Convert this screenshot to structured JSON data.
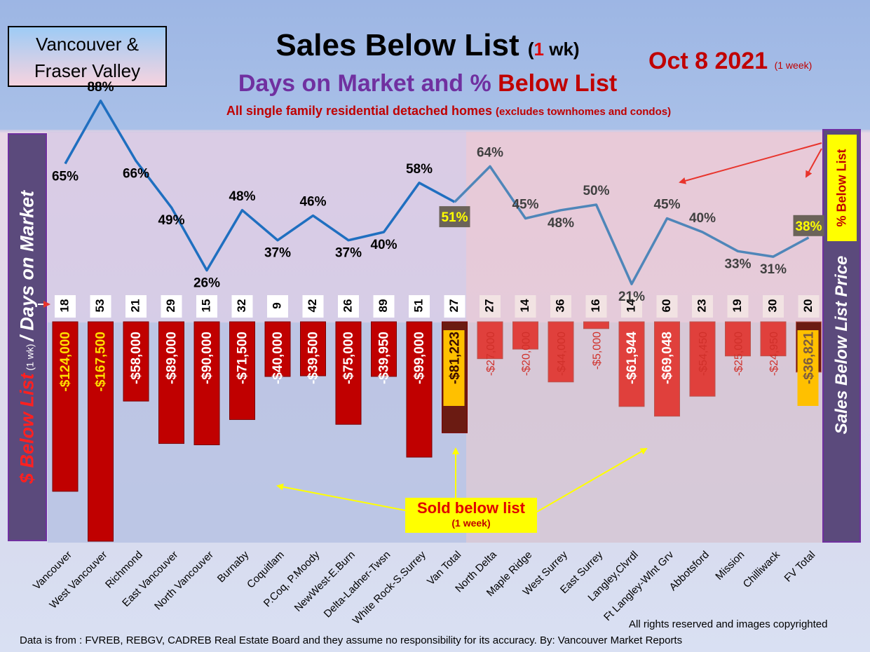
{
  "header": {
    "region": "Vancouver & Fraser Valley",
    "title_main": "Sales Below List",
    "title_paren_open": "(",
    "title_paren_num": "1",
    "title_paren_unit": " wk)",
    "subtitle_purple": "Days on Market and % ",
    "subtitle_red": "Below List",
    "subnote_main": "All single family residential detached homes ",
    "subnote_small": "(excludes townhomes and condos)",
    "date": "Oct 8  2021",
    "date_note": "(1 week)"
  },
  "side_labels": {
    "left_red": "$ Below List",
    "left_small": " (1 wk) ",
    "left_white": "/ Days on Market",
    "right": "Sales Below List Price",
    "pct_badge": "% Below List"
  },
  "callout": {
    "line1": "Sold below list",
    "line2": "(1 week)"
  },
  "footer": {
    "rights": "All rights reserved and  images copyrighted",
    "source": "Data is from : FVREB, REBGV, CADREB Real Estate Board and they assume no responsibility for its accuracy. By: Vancouver Market Reports"
  },
  "colors": {
    "line_van": "#1f6fc0",
    "line_fv": "#4f86b9",
    "bar_van": "#c00000",
    "bar_fv": "#e0403c",
    "total_bar": "#6b1b12",
    "highlight": "#ffc000"
  },
  "chart_data": {
    "type": "bar+line",
    "categories": [
      "Vancouver",
      "West Vancouver",
      "Richmond",
      "East Vancouver",
      "North Vancouver",
      "Burnaby",
      "Coquitlam",
      "P.Coq, P.Moody",
      "NewWest-E.Burn",
      "Delta-Ladner-Twsn",
      "White Rock-S.Surrey",
      "Van Total",
      "North Delta",
      "Maple Ridge",
      "West Surrey",
      "East Surrey",
      "Langley,Clvrdl",
      "Ft Langley-Wlnt Grv",
      "Abbotsford",
      "Mission",
      "Chilliwack",
      "FV Total"
    ],
    "series": [
      {
        "name": "% Below List",
        "type": "line",
        "values": [
          65,
          88,
          66,
          49,
          26,
          48,
          37,
          46,
          37,
          40,
          58,
          51,
          64,
          45,
          48,
          50,
          21,
          45,
          40,
          33,
          31,
          38
        ],
        "labels": [
          "65%",
          "88%",
          "66%",
          "49%",
          "26%",
          "48%",
          "37%",
          "46%",
          "37%",
          "40%",
          "58%",
          "51%",
          "64%",
          "45%",
          "48%",
          "50%",
          "21%",
          "45%",
          "40%",
          "33%",
          "31%",
          "38%"
        ]
      },
      {
        "name": "Days on Market",
        "type": "label",
        "values": [
          18,
          53,
          21,
          29,
          15,
          32,
          9,
          42,
          26,
          89,
          51,
          27,
          27,
          14,
          36,
          16,
          14,
          60,
          23,
          19,
          30,
          20
        ]
      },
      {
        "name": "$ Below List",
        "type": "bar",
        "values": [
          -124000,
          -167500,
          -58000,
          -89000,
          -90000,
          -71500,
          -40000,
          -39500,
          -75000,
          -39950,
          -99000,
          -81223,
          -27000,
          -20000,
          -44000,
          -5000,
          -61944,
          -69048,
          -54450,
          -25000,
          -24950,
          -36821
        ],
        "labels": [
          "-$124,000",
          "-$167,500",
          "-$58,000",
          "-$89,000",
          "-$90,000",
          "-$71,500",
          "-$40,000",
          "-$39,500",
          "-$75,000",
          "-$39,950",
          "-$99,000",
          "-$81,223",
          "-$27,000",
          "-$20,000",
          "-$44,000",
          "-$5,000",
          "-$61,944",
          "-$69,048",
          "-$54,450",
          "-$25,000",
          "-$24,950",
          "-$36,821"
        ]
      }
    ],
    "groups": [
      {
        "name": "Vancouver",
        "range": [
          0,
          11
        ]
      },
      {
        "name": "Fraser Valley",
        "range": [
          12,
          21
        ]
      }
    ],
    "totals": [
      "Van Total",
      "FV Total"
    ]
  }
}
